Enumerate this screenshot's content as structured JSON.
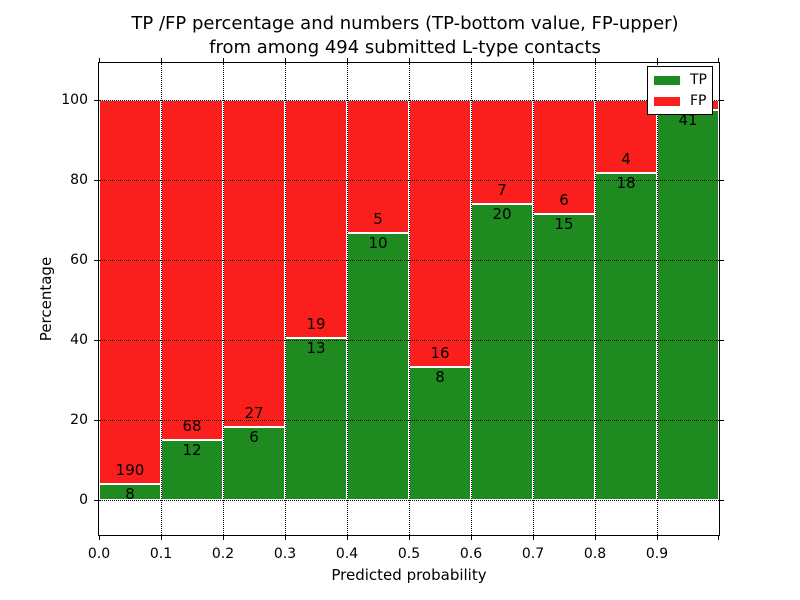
{
  "title": {
    "line1": "TP /FP percentage and numbers (TP-bottom value, FP-upper)",
    "line2": "from among 494 submitted L-type contacts"
  },
  "axes": {
    "x_label": "Predicted probability",
    "y_label": "Percentage",
    "x_tick_labels": [
      "0.0",
      "0.1",
      "0.2",
      "0.3",
      "0.4",
      "0.5",
      "0.6",
      "0.7",
      "0.8",
      "0.9"
    ],
    "y_tick_labels": [
      "0",
      "20",
      "40",
      "60",
      "80",
      "100"
    ]
  },
  "legend": {
    "position": "upper right",
    "items": [
      {
        "label": "TP",
        "color": "#1f8a1f"
      },
      {
        "label": "FP",
        "color": "#fa1f1c"
      }
    ]
  },
  "colors": {
    "tp_green": "#1f8a1f",
    "fp_red": "#fa1f1c",
    "background": "#ffffff",
    "text": "#000000",
    "grid": "#000000",
    "bar_edge": "#ffffff"
  },
  "chart_data": {
    "type": "bar",
    "stacked": true,
    "normalized": "each 0.1 bin scaled to 100%",
    "title": "TP /FP percentage and numbers (TP-bottom value, FP-upper) from among 494 submitted L-type contacts",
    "xlabel": "Predicted probability",
    "ylabel": "Percentage",
    "total_submitted": 494,
    "xlim": [
      0.0,
      1.0
    ],
    "ylim": [
      -9,
      109
    ],
    "y_ticks": [
      0,
      20,
      40,
      60,
      80,
      100
    ],
    "grid": "dotted",
    "legend_position": "upper right",
    "bins": [
      {
        "range": "0.0-0.1",
        "tp": 8,
        "fp": 190,
        "tp_percent": 4.0
      },
      {
        "range": "0.1-0.2",
        "tp": 12,
        "fp": 68,
        "tp_percent": 15.0
      },
      {
        "range": "0.2-0.3",
        "tp": 6,
        "fp": 27,
        "tp_percent": 18.2
      },
      {
        "range": "0.3-0.4",
        "tp": 13,
        "fp": 19,
        "tp_percent": 40.6
      },
      {
        "range": "0.4-0.5",
        "tp": 10,
        "fp": 5,
        "tp_percent": 66.7
      },
      {
        "range": "0.5-0.6",
        "tp": 8,
        "fp": 16,
        "tp_percent": 33.3
      },
      {
        "range": "0.6-0.7",
        "tp": 20,
        "fp": 7,
        "tp_percent": 74.1
      },
      {
        "range": "0.7-0.8",
        "tp": 15,
        "fp": 6,
        "tp_percent": 71.4
      },
      {
        "range": "0.8-0.9",
        "tp": 18,
        "fp": 4,
        "tp_percent": 81.8
      },
      {
        "range": "0.9-1.0",
        "tp": 41,
        "fp": 1,
        "tp_percent": 97.6,
        "fp_label_hidden_behind_legend": true
      }
    ]
  }
}
